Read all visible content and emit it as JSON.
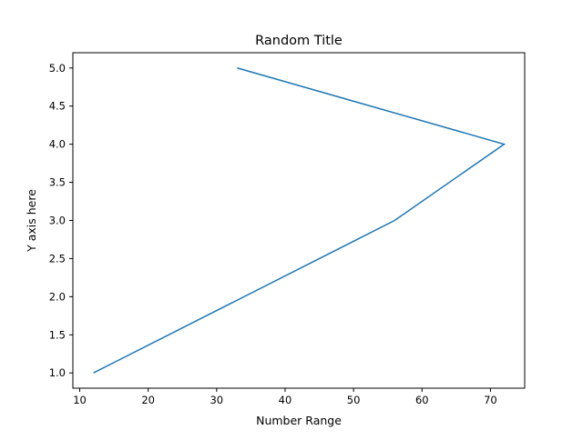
{
  "chart_data": {
    "type": "line",
    "title": "Random Title",
    "xlabel": "Number Range",
    "ylabel": "Y axis here",
    "xlim": [
      9,
      75
    ],
    "ylim": [
      0.8,
      5.2
    ],
    "x_ticks": [
      10,
      20,
      30,
      40,
      50,
      60,
      70
    ],
    "y_ticks": [
      1.0,
      1.5,
      2.0,
      2.5,
      3.0,
      3.5,
      4.0,
      4.5,
      5.0
    ],
    "x_tick_labels": [
      "10",
      "20",
      "30",
      "40",
      "50",
      "60",
      "70"
    ],
    "y_tick_labels": [
      "1.0",
      "1.5",
      "2.0",
      "2.5",
      "3.0",
      "3.5",
      "4.0",
      "4.5",
      "5.0"
    ],
    "grid": false,
    "series": [
      {
        "x": [
          12,
          56,
          72,
          33
        ],
        "y": [
          1,
          3,
          4,
          5
        ],
        "color": "#1f77b4"
      }
    ]
  }
}
